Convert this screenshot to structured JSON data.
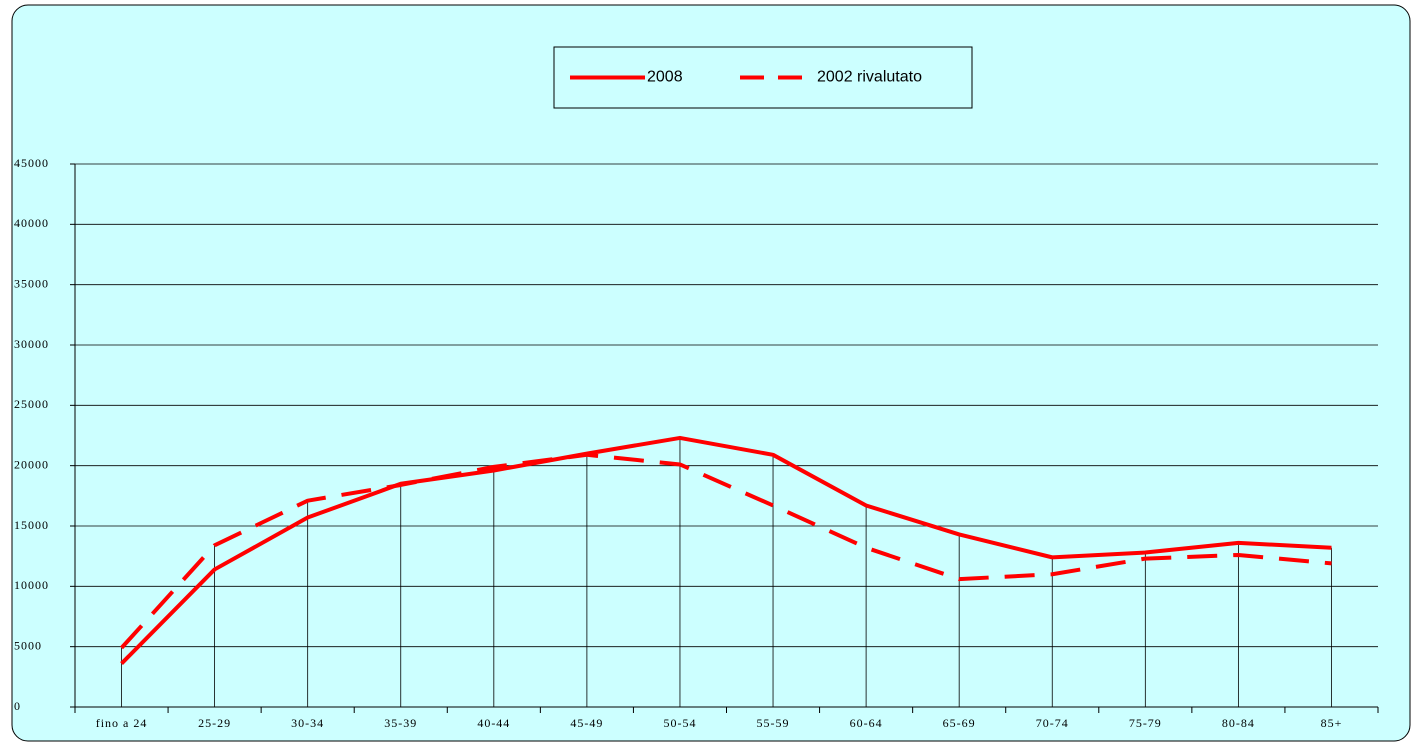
{
  "chart_data": {
    "type": "line",
    "categories": [
      "fino a 24",
      "25-29",
      "30-34",
      "35-39",
      "40-44",
      "45-49",
      "50-54",
      "55-59",
      "60-64",
      "65-69",
      "70-74",
      "75-79",
      "80-84",
      "85+"
    ],
    "series": [
      {
        "name": "2008",
        "color": "#ff0000",
        "dashed": false,
        "values": [
          3600,
          11400,
          15700,
          18500,
          19600,
          21000,
          22300,
          20900,
          16700,
          14300,
          12400,
          12800,
          13600,
          13200
        ]
      },
      {
        "name": "2002 rivalutato",
        "color": "#ff0000",
        "dashed": true,
        "values": [
          4900,
          13400,
          17100,
          18400,
          19900,
          20900,
          20100,
          16700,
          13200,
          10600,
          11000,
          12300,
          12600,
          11900
        ]
      }
    ],
    "ylim": [
      0,
      45000
    ],
    "yticks": [
      0,
      5000,
      10000,
      15000,
      20000,
      25000,
      30000,
      35000,
      40000,
      45000
    ],
    "grid": true,
    "drop_lines": true,
    "legend": "top",
    "background": "#ccffff"
  }
}
